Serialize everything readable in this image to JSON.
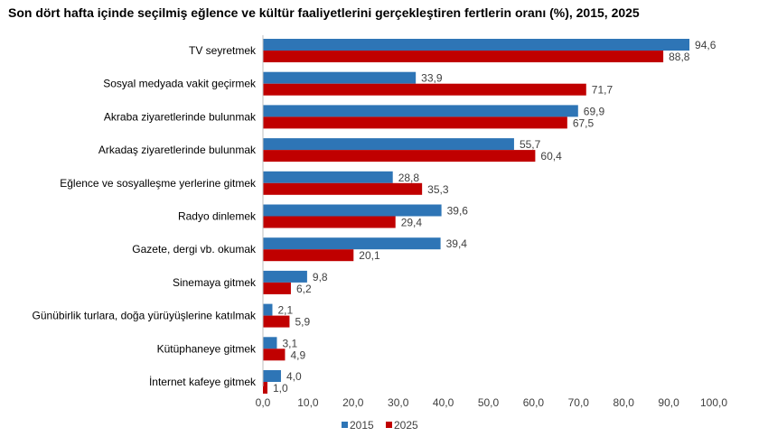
{
  "chart_data": {
    "type": "bar",
    "orientation": "horizontal",
    "title": "Son dört hafta içinde seçilmiş eğlence ve kültür faaliyetlerini gerçekleştiren fertlerin oranı (%), 2015, 2025",
    "categories": [
      "TV seyretmek",
      "Sosyal medyada vakit geçirmek",
      "Akraba ziyaretlerinde bulunmak",
      "Arkadaş ziyaretlerinde bulunmak",
      "Eğlence ve sosyalleşme yerlerine gitmek",
      "Radyo dinlemek",
      "Gazete, dergi vb. okumak",
      "Sinemaya gitmek",
      "Günübirlik turlara, doğa yürüyüşlerine katılmak",
      "Kütüphaneye gitmek",
      "İnternet kafeye gitmek"
    ],
    "series": [
      {
        "name": "2015",
        "color": "#2e75b6",
        "values": [
          94.6,
          33.9,
          69.9,
          55.7,
          28.8,
          39.6,
          39.4,
          9.8,
          2.1,
          3.1,
          4.0
        ],
        "labels": [
          "94,6",
          "33,9",
          "69,9",
          "55,7",
          "28,8",
          "39,6",
          "39,4",
          "9,8",
          "2,1",
          "3,1",
          "4,0"
        ]
      },
      {
        "name": "2025",
        "color": "#c00000",
        "values": [
          88.8,
          71.7,
          67.5,
          60.4,
          35.3,
          29.4,
          20.1,
          6.2,
          5.9,
          4.9,
          1.0
        ],
        "labels": [
          "88,8",
          "71,7",
          "67,5",
          "60,4",
          "35,3",
          "29,4",
          "20,1",
          "6,2",
          "5,9",
          "4,9",
          "1,0"
        ]
      }
    ],
    "xlim": [
      0,
      100
    ],
    "xticks": [
      "0,0",
      "10,0",
      "20,0",
      "30,0",
      "40,0",
      "50,0",
      "60,0",
      "70,0",
      "80,0",
      "90,0",
      "100,0"
    ],
    "grid": false,
    "legend": "bottom"
  }
}
